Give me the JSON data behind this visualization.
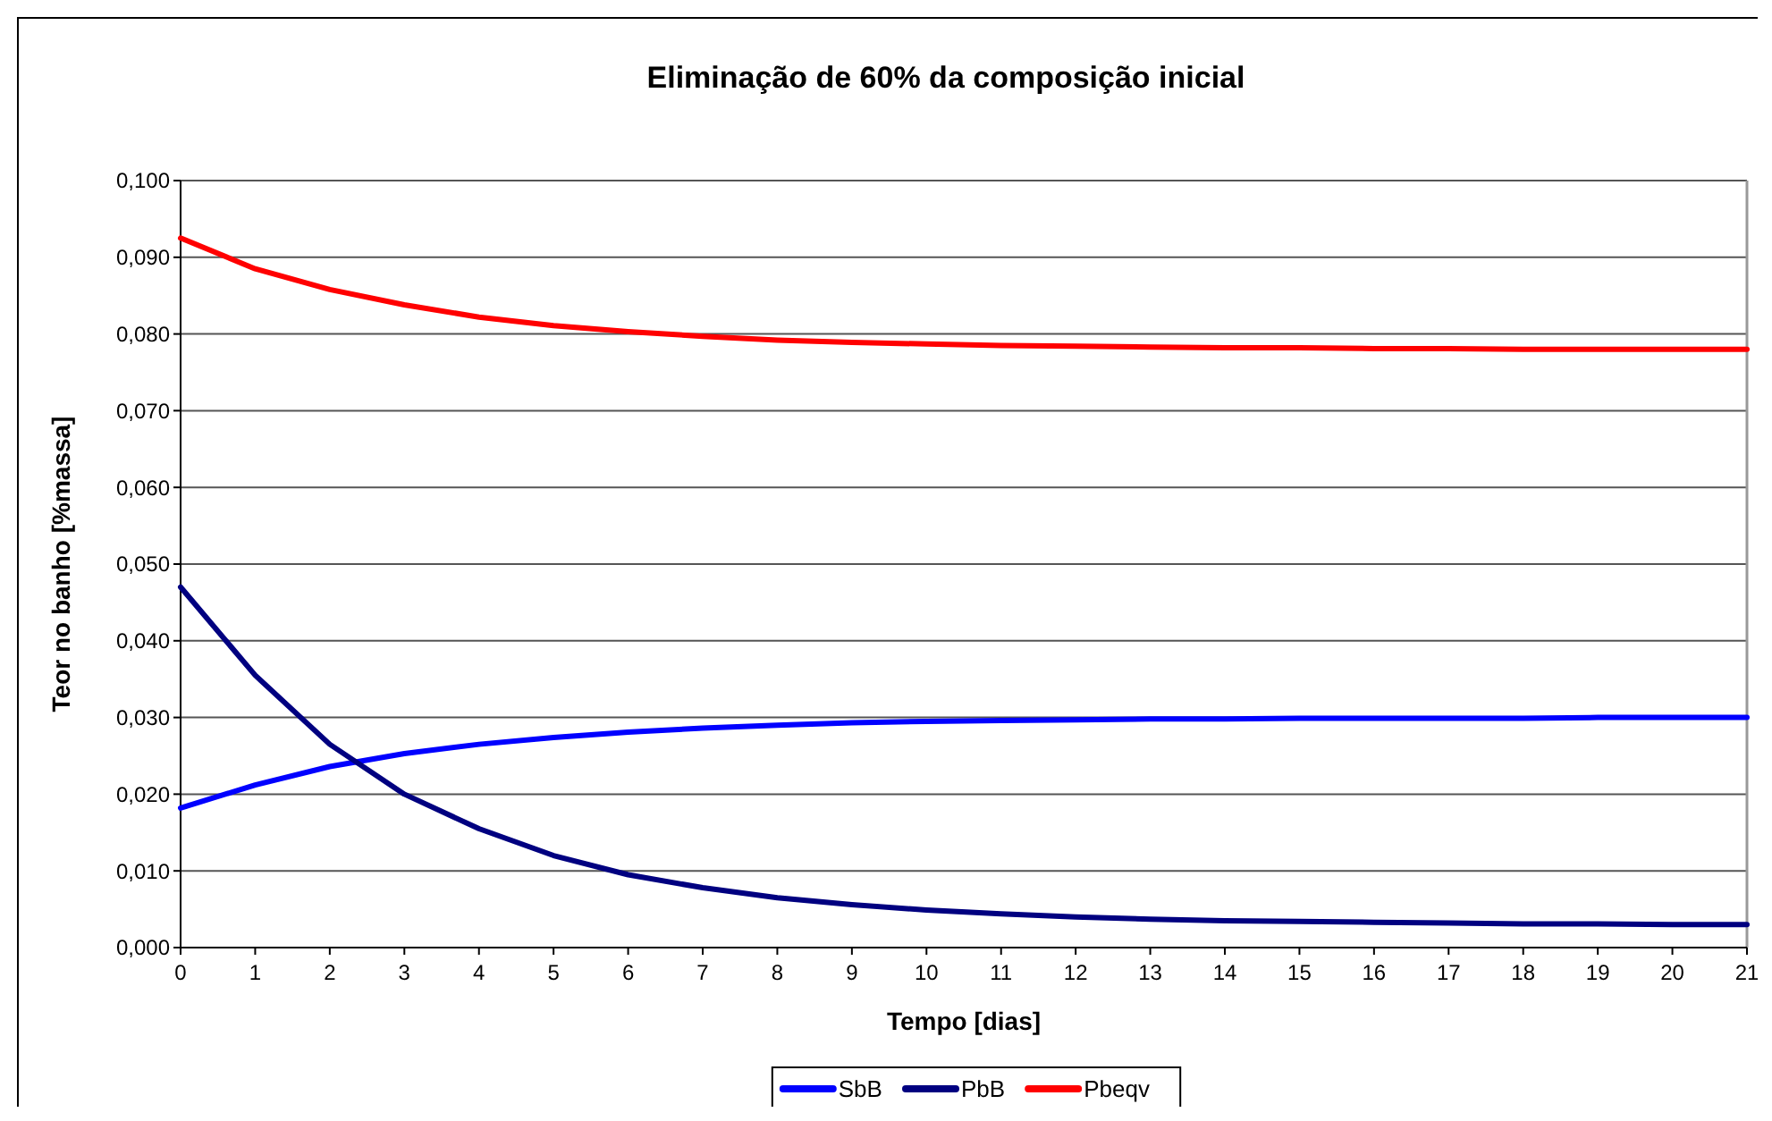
{
  "chart_data": {
    "type": "line",
    "title": "Eliminação de 60% da composição inicial",
    "xlabel": "Tempo [dias]",
    "ylabel": "Teor no banho [%massa]",
    "x": [
      0,
      1,
      2,
      3,
      4,
      5,
      6,
      7,
      8,
      9,
      10,
      11,
      12,
      13,
      14,
      15,
      16,
      17,
      18,
      19,
      20,
      21
    ],
    "series": [
      {
        "name": "SbB",
        "color": "#0000ff",
        "values": [
          0.0182,
          0.0212,
          0.0236,
          0.0253,
          0.0265,
          0.0274,
          0.0281,
          0.0286,
          0.029,
          0.0293,
          0.0295,
          0.0296,
          0.0297,
          0.0298,
          0.0298,
          0.0299,
          0.0299,
          0.0299,
          0.0299,
          0.03,
          0.03,
          0.03
        ]
      },
      {
        "name": "PbB",
        "color": "#000080",
        "values": [
          0.047,
          0.0355,
          0.0265,
          0.02,
          0.0155,
          0.012,
          0.0095,
          0.0078,
          0.0065,
          0.0056,
          0.0049,
          0.0044,
          0.004,
          0.0037,
          0.0035,
          0.0034,
          0.0033,
          0.0032,
          0.0031,
          0.0031,
          0.003,
          0.003
        ]
      },
      {
        "name": "Pbeqv",
        "color": "#ff0000",
        "values": [
          0.0925,
          0.0885,
          0.0858,
          0.0838,
          0.0822,
          0.0811,
          0.0803,
          0.0797,
          0.0792,
          0.0789,
          0.0787,
          0.0785,
          0.0784,
          0.0783,
          0.0782,
          0.0782,
          0.0781,
          0.0781,
          0.078,
          0.078,
          0.078,
          0.078
        ]
      }
    ],
    "xlim": [
      0,
      21
    ],
    "xticks": [
      0,
      1,
      2,
      3,
      4,
      5,
      6,
      7,
      8,
      9,
      10,
      11,
      12,
      13,
      14,
      15,
      16,
      17,
      18,
      19,
      20,
      21
    ],
    "ylim": [
      0,
      0.1
    ],
    "yticks": [
      {
        "value": 0,
        "label": "0,000"
      },
      {
        "value": 0.01,
        "label": "0,010"
      },
      {
        "value": 0.02,
        "label": "0,020"
      },
      {
        "value": 0.03,
        "label": "0,030"
      },
      {
        "value": 0.04,
        "label": "0,040"
      },
      {
        "value": 0.05,
        "label": "0,050"
      },
      {
        "value": 0.06,
        "label": "0,060"
      },
      {
        "value": 0.07,
        "label": "0,070"
      },
      {
        "value": 0.08,
        "label": "0,080"
      },
      {
        "value": 0.09,
        "label": "0,090"
      },
      {
        "value": 0.1,
        "label": "0,100"
      }
    ],
    "grid": "y",
    "legend": "bottom",
    "marker": "none",
    "line_style": "solid"
  }
}
